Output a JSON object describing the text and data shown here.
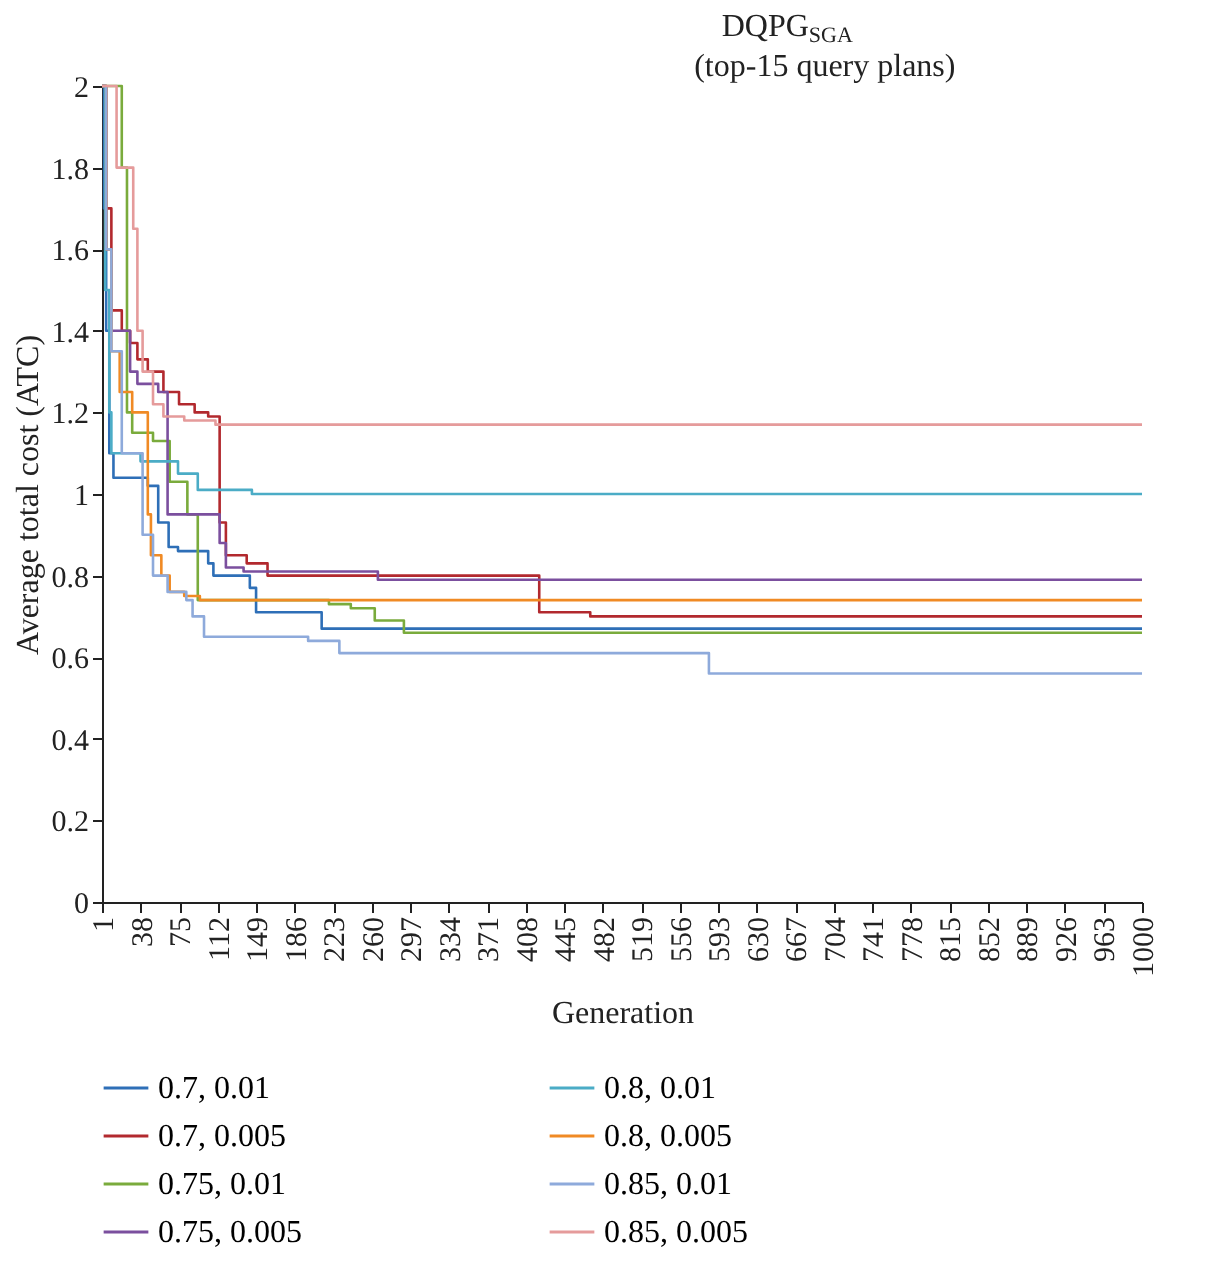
{
  "chart_data": {
    "type": "step",
    "title": "DQPG$_{SGA}$\n(top-15 query plans)",
    "xlabel": "Generation",
    "ylabel": "Average total cost (ATC)",
    "xlim": [
      1,
      1000
    ],
    "xticks": [
      1,
      38,
      75,
      112,
      149,
      186,
      223,
      260,
      297,
      334,
      371,
      408,
      445,
      482,
      519,
      556,
      593,
      630,
      667,
      704,
      741,
      778,
      815,
      852,
      889,
      926,
      963,
      1000
    ],
    "ylim": [
      0,
      2
    ],
    "yticks": [
      0,
      0.2,
      0.4,
      0.6,
      0.8,
      1,
      1.2,
      1.4,
      1.6,
      1.8,
      2
    ],
    "grid": false,
    "legend": "bottom",
    "marker": "none",
    "line_style": "solid",
    "series": [
      {
        "name": "0.7, 0.01",
        "color": "#2e6fb7",
        "x": [
          1,
          3,
          5,
          8,
          12,
          45,
          55,
          65,
          74,
          103,
          108,
          143,
          149,
          212,
          1000
        ],
        "values": [
          2,
          1.7,
          1.4,
          1.1,
          1.04,
          1.02,
          0.93,
          0.87,
          0.86,
          0.83,
          0.8,
          0.77,
          0.71,
          0.67,
          0.67
        ]
      },
      {
        "name": "0.7, 0.005",
        "color": "#b2292e",
        "x": [
          1,
          5,
          10,
          20,
          28,
          35,
          45,
          60,
          75,
          90,
          103,
          114,
          120,
          140,
          160,
          421,
          470,
          1000
        ],
        "values": [
          2,
          1.7,
          1.45,
          1.4,
          1.37,
          1.33,
          1.3,
          1.25,
          1.22,
          1.2,
          1.19,
          0.93,
          0.85,
          0.83,
          0.8,
          0.71,
          0.7,
          0.7
        ]
      },
      {
        "name": "0.75, 0.01",
        "color": "#7aab3c",
        "x": [
          1,
          20,
          25,
          30,
          50,
          66,
          83,
          93,
          219,
          240,
          263,
          291,
          1000
        ],
        "values": [
          2,
          1.8,
          1.2,
          1.15,
          1.13,
          1.03,
          0.95,
          0.74,
          0.73,
          0.72,
          0.69,
          0.66,
          0.66
        ]
      },
      {
        "name": "0.75, 0.005",
        "color": "#7b4f9e",
        "x": [
          1,
          5,
          10,
          28,
          35,
          55,
          64,
          114,
          120,
          137,
          266,
          1000
        ],
        "values": [
          2,
          1.6,
          1.4,
          1.3,
          1.27,
          1.25,
          0.95,
          0.88,
          0.82,
          0.81,
          0.79,
          0.79
        ]
      },
      {
        "name": "0.8, 0.01",
        "color": "#4bacc6",
        "x": [
          1,
          4,
          8,
          10,
          38,
          74,
          93,
          145,
          1000
        ],
        "values": [
          2,
          1.5,
          1.2,
          1.1,
          1.08,
          1.05,
          1.01,
          1.0,
          1.0
        ]
      },
      {
        "name": "0.8, 0.005",
        "color": "#f08a24",
        "x": [
          1,
          5,
          10,
          18,
          30,
          45,
          48,
          58,
          66,
          80,
          95,
          1000
        ],
        "values": [
          2,
          1.6,
          1.35,
          1.25,
          1.2,
          0.95,
          0.85,
          0.8,
          0.76,
          0.75,
          0.74,
          0.74
        ]
      },
      {
        "name": "0.85, 0.01",
        "color": "#8eaadb",
        "x": [
          1,
          5,
          10,
          20,
          40,
          50,
          64,
          82,
          88,
          99,
          199,
          229,
          584,
          1000
        ],
        "values": [
          2,
          1.6,
          1.35,
          1.1,
          0.9,
          0.8,
          0.76,
          0.74,
          0.7,
          0.65,
          0.64,
          0.61,
          0.56,
          0.56
        ]
      },
      {
        "name": "0.85, 0.005",
        "color": "#e59b9b",
        "x": [
          1,
          15,
          31,
          35,
          40,
          50,
          60,
          80,
          110,
          1000
        ],
        "values": [
          2,
          1.8,
          1.65,
          1.4,
          1.3,
          1.22,
          1.19,
          1.18,
          1.17,
          1.17
        ]
      }
    ]
  }
}
